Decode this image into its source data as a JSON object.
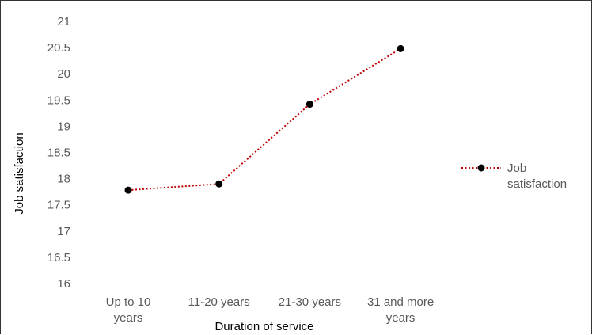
{
  "chart_data": {
    "type": "line",
    "categories": [
      "Up to 10 years",
      "11-20 years",
      "21-30 years",
      "31 and more years"
    ],
    "category_label_lines": [
      [
        "Up to 10",
        "years"
      ],
      [
        "11-20 years"
      ],
      [
        "21-30 years"
      ],
      [
        "31 and more",
        "years"
      ]
    ],
    "series": [
      {
        "name": "Job satisfaction",
        "values": [
          17.78,
          17.9,
          19.42,
          20.48
        ]
      }
    ],
    "legend_label_lines": [
      "Job",
      "satisfaction"
    ],
    "ylim": [
      16,
      21
    ],
    "yticks": [
      "16",
      "16.5",
      "17",
      "17.5",
      "18",
      "18.5",
      "19",
      "19.5",
      "20",
      "20.5",
      "21"
    ],
    "xlabel": "Duration of service",
    "ylabel": "Job satisfaction",
    "grid": false,
    "legend_position": "right",
    "line_style": "dotted",
    "colors": {
      "line": "#c00000",
      "marker": "#000000",
      "tick_text": "#595959"
    }
  }
}
